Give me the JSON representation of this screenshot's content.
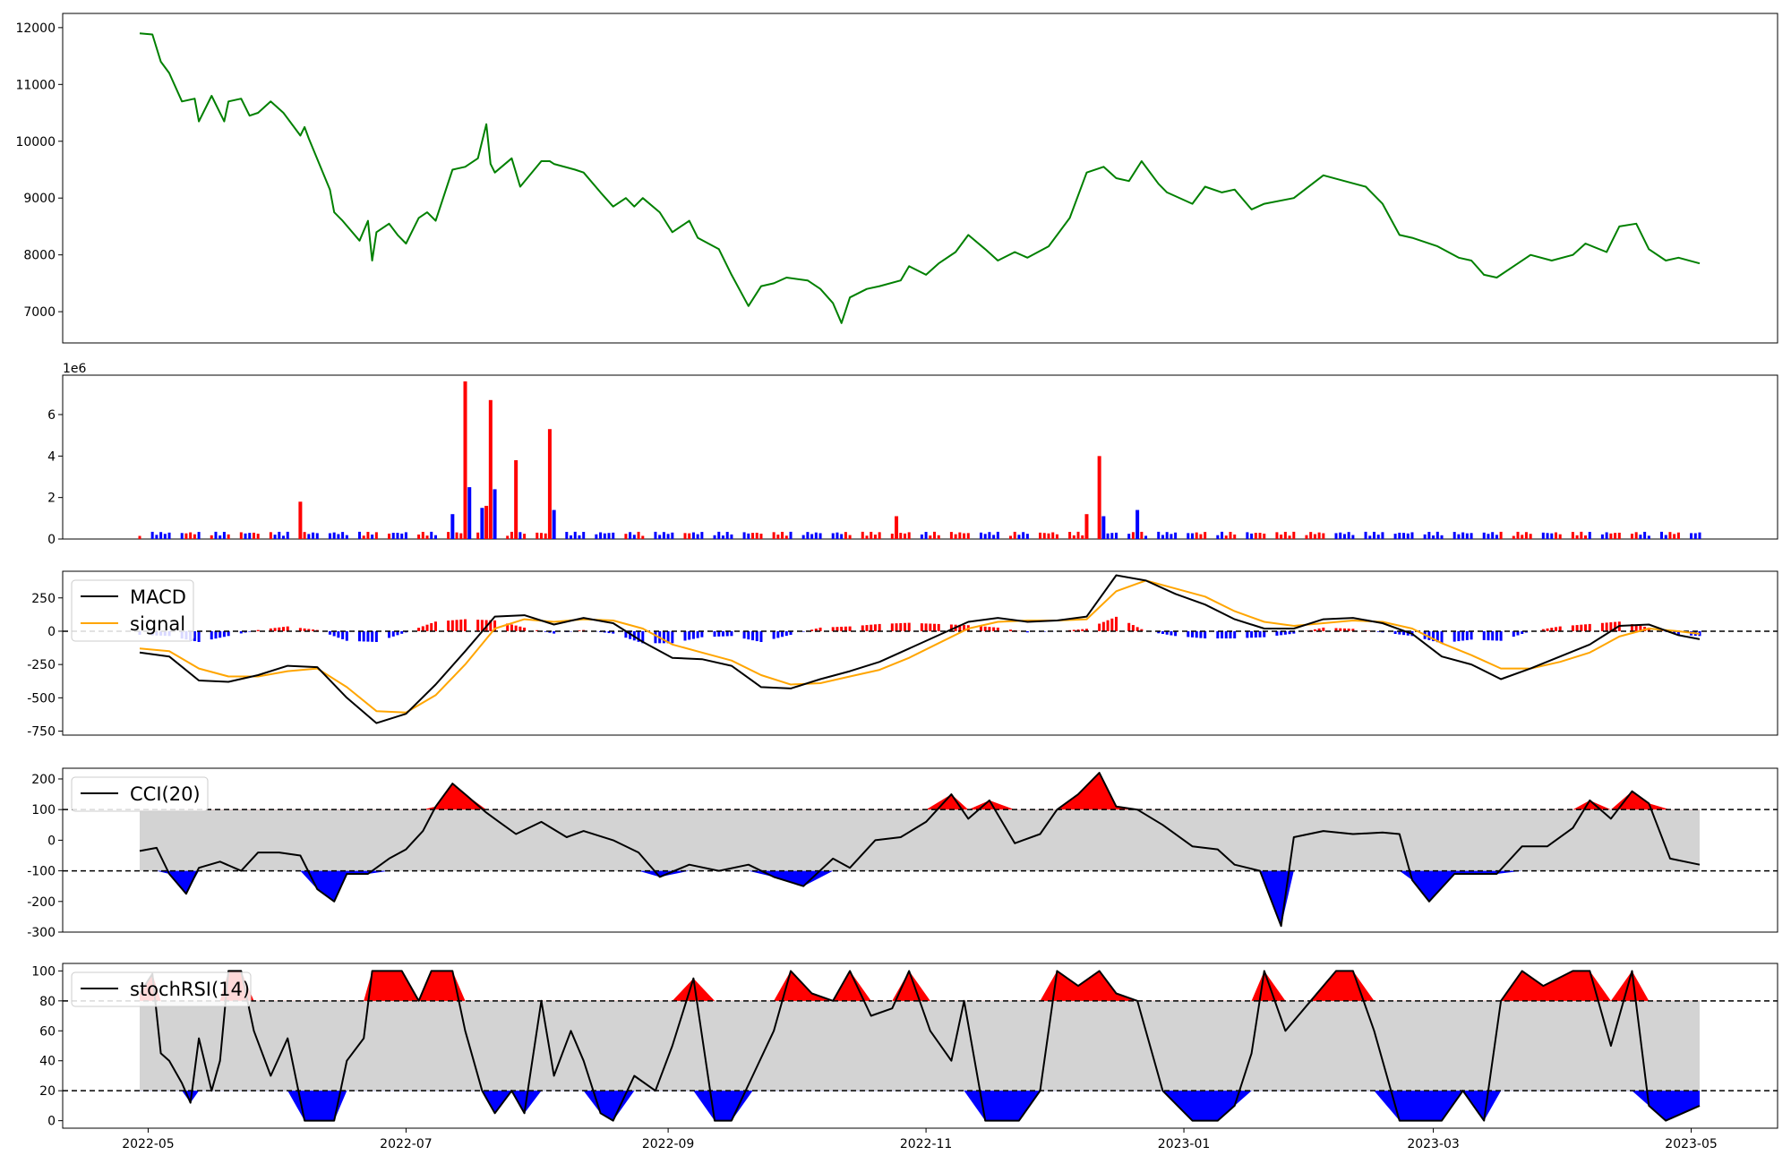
{
  "chart_data": [
    {
      "type": "line",
      "panel": "price",
      "color": "#008000",
      "ylim": [
        6450,
        12250
      ],
      "yticks": [
        7000,
        8000,
        9000,
        10000,
        11000,
        12000
      ],
      "x": [
        "2022-04-29",
        "2022-05-02",
        "2022-05-04",
        "2022-05-06",
        "2022-05-09",
        "2022-05-12",
        "2022-05-13",
        "2022-05-16",
        "2022-05-19",
        "2022-05-20",
        "2022-05-23",
        "2022-05-25",
        "2022-05-27",
        "2022-05-30",
        "2022-06-02",
        "2022-06-06",
        "2022-06-07",
        "2022-06-08",
        "2022-06-13",
        "2022-06-14",
        "2022-06-16",
        "2022-06-20",
        "2022-06-22",
        "2022-06-23",
        "2022-06-24",
        "2022-06-27",
        "2022-06-29",
        "2022-07-01",
        "2022-07-04",
        "2022-07-06",
        "2022-07-08",
        "2022-07-12",
        "2022-07-15",
        "2022-07-18",
        "2022-07-20",
        "2022-07-21",
        "2022-07-22",
        "2022-07-26",
        "2022-07-28",
        "2022-08-02",
        "2022-08-04",
        "2022-08-05",
        "2022-08-10",
        "2022-08-12",
        "2022-08-16",
        "2022-08-19",
        "2022-08-22",
        "2022-08-24",
        "2022-08-26",
        "2022-08-30",
        "2022-09-02",
        "2022-09-06",
        "2022-09-08",
        "2022-09-13",
        "2022-09-16",
        "2022-09-20",
        "2022-09-23",
        "2022-09-26",
        "2022-09-29",
        "2022-10-04",
        "2022-10-07",
        "2022-10-10",
        "2022-10-12",
        "2022-10-14",
        "2022-10-18",
        "2022-10-21",
        "2022-10-26",
        "2022-10-28",
        "2022-11-01",
        "2022-11-04",
        "2022-11-08",
        "2022-11-11",
        "2022-11-15",
        "2022-11-18",
        "2022-11-22",
        "2022-11-25",
        "2022-11-30",
        "2022-12-05",
        "2022-12-09",
        "2022-12-13",
        "2022-12-16",
        "2022-12-19",
        "2022-12-22",
        "2022-12-26",
        "2022-12-28",
        "2023-01-03",
        "2023-01-06",
        "2023-01-10",
        "2023-01-13",
        "2023-01-17",
        "2023-01-20",
        "2023-01-27",
        "2023-02-03",
        "2023-02-08",
        "2023-02-13",
        "2023-02-17",
        "2023-02-21",
        "2023-02-24",
        "2023-03-02",
        "2023-03-07",
        "2023-03-10",
        "2023-03-13",
        "2023-03-16",
        "2023-03-21",
        "2023-03-24",
        "2023-03-29",
        "2023-04-03",
        "2023-04-06",
        "2023-04-11",
        "2023-04-14",
        "2023-04-18",
        "2023-04-21",
        "2023-04-25",
        "2023-04-28",
        "2023-05-03"
      ],
      "values": [
        11900,
        11880,
        11400,
        11200,
        10700,
        10750,
        10350,
        10800,
        10350,
        10700,
        10750,
        10450,
        10500,
        10700,
        10500,
        10100,
        10250,
        10050,
        9150,
        8750,
        8600,
        8250,
        8600,
        7900,
        8400,
        8550,
        8350,
        8200,
        8650,
        8750,
        8600,
        9500,
        9550,
        9700,
        10300,
        9600,
        9450,
        9700,
        9200,
        9650,
        9650,
        9600,
        9500,
        9450,
        9100,
        8850,
        9000,
        8850,
        9000,
        8750,
        8400,
        8600,
        8300,
        8100,
        7650,
        7100,
        7450,
        7500,
        7600,
        7550,
        7400,
        7150,
        6800,
        7250,
        7400,
        7450,
        7550,
        7800,
        7650,
        7850,
        8050,
        8350,
        8100,
        7900,
        8050,
        7950,
        8150,
        8650,
        9450,
        9550,
        9350,
        9300,
        9650,
        9250,
        9100,
        8900,
        9200,
        9100,
        9150,
        8800,
        8900,
        9000,
        9400,
        9300,
        9200,
        8900,
        8350,
        8300,
        8150,
        7950,
        7900,
        7650,
        7600,
        7850,
        8000,
        7900,
        8000,
        8200,
        8050,
        8500,
        8550,
        8100,
        7900,
        7950,
        7850
      ]
    },
    {
      "type": "bar",
      "panel": "volume",
      "exponent_label": "1e6",
      "ylim": [
        0,
        7.9
      ],
      "yticks": [
        0,
        2,
        4,
        6
      ],
      "up_color": "#ff0000",
      "down_color": "#0000ff",
      "baseline": 0.25,
      "spikes": [
        {
          "x": "2022-06-06",
          "value": 1.8,
          "color": "#ff0000"
        },
        {
          "x": "2022-07-12",
          "value": 1.2,
          "color": "#0000ff"
        },
        {
          "x": "2022-07-15",
          "value": 7.6,
          "color": "#ff0000"
        },
        {
          "x": "2022-07-16",
          "value": 2.5,
          "color": "#0000ff"
        },
        {
          "x": "2022-07-19",
          "value": 1.5,
          "color": "#0000ff"
        },
        {
          "x": "2022-07-20",
          "value": 1.6,
          "color": "#ff0000"
        },
        {
          "x": "2022-07-21",
          "value": 6.7,
          "color": "#ff0000"
        },
        {
          "x": "2022-07-22",
          "value": 2.4,
          "color": "#0000ff"
        },
        {
          "x": "2022-07-27",
          "value": 3.8,
          "color": "#ff0000"
        },
        {
          "x": "2022-08-04",
          "value": 5.3,
          "color": "#ff0000"
        },
        {
          "x": "2022-08-05",
          "value": 1.4,
          "color": "#0000ff"
        },
        {
          "x": "2022-10-25",
          "value": 1.1,
          "color": "#ff0000"
        },
        {
          "x": "2022-12-09",
          "value": 1.2,
          "color": "#ff0000"
        },
        {
          "x": "2022-12-12",
          "value": 4.0,
          "color": "#ff0000"
        },
        {
          "x": "2022-12-13",
          "value": 1.1,
          "color": "#0000ff"
        },
        {
          "x": "2022-12-21",
          "value": 1.4,
          "color": "#0000ff"
        }
      ]
    },
    {
      "type": "line",
      "panel": "macd",
      "ylim": [
        -780,
        450
      ],
      "yticks": [
        -750,
        -500,
        -250,
        0,
        250
      ],
      "legend": [
        "MACD",
        "signal"
      ],
      "macd_color": "#000000",
      "signal_color": "#ffa500",
      "hist_pos_color": "#ff0000",
      "hist_neg_color": "#0000ff",
      "x": [
        "2022-04-29",
        "2022-05-06",
        "2022-05-13",
        "2022-05-20",
        "2022-05-27",
        "2022-06-03",
        "2022-06-10",
        "2022-06-17",
        "2022-06-24",
        "2022-07-01",
        "2022-07-08",
        "2022-07-15",
        "2022-07-22",
        "2022-07-29",
        "2022-08-05",
        "2022-08-12",
        "2022-08-19",
        "2022-08-26",
        "2022-09-02",
        "2022-09-09",
        "2022-09-16",
        "2022-09-23",
        "2022-09-30",
        "2022-10-07",
        "2022-10-14",
        "2022-10-21",
        "2022-10-28",
        "2022-11-04",
        "2022-11-11",
        "2022-11-18",
        "2022-11-25",
        "2022-12-02",
        "2022-12-09",
        "2022-12-16",
        "2022-12-23",
        "2022-12-30",
        "2023-01-06",
        "2023-01-13",
        "2023-01-20",
        "2023-01-27",
        "2023-02-03",
        "2023-02-10",
        "2023-02-17",
        "2023-02-24",
        "2023-03-03",
        "2023-03-10",
        "2023-03-17",
        "2023-03-24",
        "2023-03-31",
        "2023-04-07",
        "2023-04-14",
        "2023-04-21",
        "2023-04-28",
        "2023-05-03"
      ],
      "macd": [
        -160,
        -190,
        -370,
        -380,
        -330,
        -260,
        -270,
        -500,
        -690,
        -620,
        -400,
        -150,
        110,
        120,
        50,
        100,
        60,
        -80,
        -200,
        -210,
        -260,
        -420,
        -430,
        -360,
        -300,
        -230,
        -130,
        -30,
        70,
        100,
        70,
        80,
        110,
        420,
        380,
        280,
        200,
        90,
        20,
        20,
        90,
        100,
        60,
        -20,
        -190,
        -250,
        -360,
        -280,
        -190,
        -100,
        40,
        50,
        -30,
        -60
      ],
      "signal": [
        -130,
        -150,
        -280,
        -340,
        -340,
        -300,
        -280,
        -420,
        -600,
        -610,
        -480,
        -250,
        20,
        90,
        70,
        90,
        80,
        20,
        -100,
        -160,
        -220,
        -330,
        -400,
        -390,
        -340,
        -290,
        -200,
        -90,
        20,
        70,
        80,
        80,
        90,
        300,
        380,
        320,
        260,
        150,
        70,
        40,
        60,
        80,
        70,
        20,
        -90,
        -180,
        -280,
        -280,
        -230,
        -160,
        -40,
        20,
        0,
        -20
      ]
    },
    {
      "type": "area",
      "panel": "cci",
      "ylim": [
        -300,
        235
      ],
      "yticks": [
        -300,
        -200,
        -100,
        0,
        100,
        200
      ],
      "legend": [
        "CCI(20)"
      ],
      "band": [
        -100,
        100
      ],
      "band_color": "#d3d3d3",
      "over_color": "#ff0000",
      "under_color": "#0000ff",
      "x": [
        "2022-04-29",
        "2022-05-03",
        "2022-05-06",
        "2022-05-10",
        "2022-05-13",
        "2022-05-18",
        "2022-05-23",
        "2022-05-27",
        "2022-06-01",
        "2022-06-06",
        "2022-06-10",
        "2022-06-14",
        "2022-06-17",
        "2022-06-22",
        "2022-06-27",
        "2022-07-01",
        "2022-07-05",
        "2022-07-08",
        "2022-07-12",
        "2022-07-15",
        "2022-07-20",
        "2022-07-23",
        "2022-07-27",
        "2022-08-02",
        "2022-08-08",
        "2022-08-12",
        "2022-08-19",
        "2022-08-25",
        "2022-08-30",
        "2022-09-06",
        "2022-09-13",
        "2022-09-20",
        "2022-09-26",
        "2022-10-03",
        "2022-10-10",
        "2022-10-14",
        "2022-10-20",
        "2022-10-26",
        "2022-11-01",
        "2022-11-07",
        "2022-11-11",
        "2022-11-16",
        "2022-11-22",
        "2022-11-28",
        "2022-12-02",
        "2022-12-07",
        "2022-12-12",
        "2022-12-16",
        "2022-12-21",
        "2022-12-27",
        "2023-01-03",
        "2023-01-09",
        "2023-01-13",
        "2023-01-19",
        "2023-01-24",
        "2023-01-27",
        "2023-02-03",
        "2023-02-10",
        "2023-02-17",
        "2023-02-21",
        "2023-02-24",
        "2023-02-28",
        "2023-03-06",
        "2023-03-10",
        "2023-03-16",
        "2023-03-22",
        "2023-03-28",
        "2023-04-03",
        "2023-04-07",
        "2023-04-12",
        "2023-04-17",
        "2023-04-21",
        "2023-04-26",
        "2023-05-03"
      ],
      "values": [
        -35,
        -25,
        -110,
        -175,
        -90,
        -70,
        -100,
        -40,
        -40,
        -50,
        -160,
        -200,
        -110,
        -110,
        -60,
        -30,
        30,
        110,
        185,
        150,
        90,
        60,
        20,
        60,
        10,
        30,
        0,
        -40,
        -120,
        -80,
        -100,
        -80,
        -120,
        -150,
        -60,
        -90,
        0,
        10,
        60,
        150,
        70,
        130,
        -10,
        20,
        100,
        150,
        220,
        110,
        100,
        50,
        -20,
        -30,
        -80,
        -100,
        -280,
        10,
        30,
        20,
        25,
        20,
        -130,
        -200,
        -110,
        -110,
        -110,
        -20,
        -20,
        40,
        130,
        70,
        160,
        120,
        -60,
        -80
      ]
    },
    {
      "type": "area",
      "panel": "stochrsi",
      "ylim": [
        -5,
        105
      ],
      "yticks": [
        0,
        20,
        40,
        60,
        80,
        100
      ],
      "legend": [
        "stochRSI(14)"
      ],
      "band": [
        20,
        80
      ],
      "band_color": "#d3d3d3",
      "over_color": "#ff0000",
      "under_color": "#0000ff",
      "x": [
        "2022-04-29",
        "2022-05-02",
        "2022-05-04",
        "2022-05-06",
        "2022-05-09",
        "2022-05-11",
        "2022-05-13",
        "2022-05-16",
        "2022-05-18",
        "2022-05-20",
        "2022-05-23",
        "2022-05-26",
        "2022-05-30",
        "2022-06-03",
        "2022-06-07",
        "2022-06-10",
        "2022-06-14",
        "2022-06-17",
        "2022-06-21",
        "2022-06-23",
        "2022-06-27",
        "2022-06-30",
        "2022-07-04",
        "2022-07-07",
        "2022-07-12",
        "2022-07-15",
        "2022-07-19",
        "2022-07-22",
        "2022-07-26",
        "2022-07-29",
        "2022-08-02",
        "2022-08-05",
        "2022-08-09",
        "2022-08-12",
        "2022-08-16",
        "2022-08-19",
        "2022-08-24",
        "2022-08-29",
        "2022-09-02",
        "2022-09-07",
        "2022-09-12",
        "2022-09-16",
        "2022-09-21",
        "2022-09-26",
        "2022-09-30",
        "2022-10-05",
        "2022-10-10",
        "2022-10-14",
        "2022-10-19",
        "2022-10-24",
        "2022-10-28",
        "2022-11-02",
        "2022-11-07",
        "2022-11-10",
        "2022-11-15",
        "2022-11-18",
        "2022-11-23",
        "2022-11-28",
        "2022-12-02",
        "2022-12-07",
        "2022-12-12",
        "2022-12-16",
        "2022-12-21",
        "2022-12-27",
        "2023-01-03",
        "2023-01-09",
        "2023-01-13",
        "2023-01-17",
        "2023-01-20",
        "2023-01-25",
        "2023-01-31",
        "2023-02-06",
        "2023-02-10",
        "2023-02-15",
        "2023-02-21",
        "2023-02-27",
        "2023-03-03",
        "2023-03-08",
        "2023-03-13",
        "2023-03-17",
        "2023-03-22",
        "2023-03-27",
        "2023-04-03",
        "2023-04-07",
        "2023-04-12",
        "2023-04-17",
        "2023-04-21",
        "2023-04-25",
        "2023-05-03"
      ],
      "values": [
        85,
        98,
        45,
        40,
        25,
        12,
        55,
        20,
        40,
        100,
        100,
        60,
        30,
        55,
        0,
        0,
        0,
        40,
        55,
        100,
        100,
        100,
        80,
        100,
        100,
        60,
        20,
        5,
        20,
        5,
        80,
        30,
        60,
        40,
        5,
        0,
        30,
        20,
        50,
        95,
        0,
        0,
        30,
        60,
        100,
        85,
        80,
        100,
        70,
        75,
        100,
        60,
        40,
        80,
        0,
        0,
        0,
        20,
        100,
        90,
        100,
        85,
        80,
        20,
        0,
        0,
        10,
        45,
        100,
        60,
        80,
        100,
        100,
        60,
        0,
        0,
        0,
        20,
        0,
        80,
        100,
        90,
        100,
        100,
        50,
        100,
        10,
        0,
        10
      ]
    }
  ],
  "x_axis": {
    "ticks": [
      "2022-05",
      "2022-07",
      "2022-09",
      "2022-11",
      "2023-01",
      "2023-03",
      "2023-05"
    ]
  }
}
